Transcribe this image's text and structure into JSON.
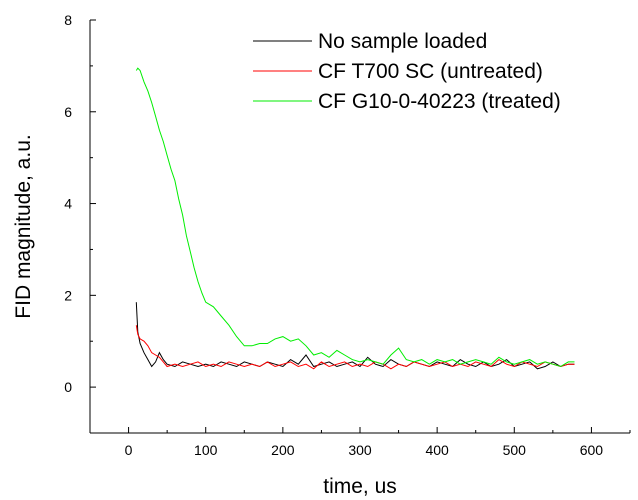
{
  "chart_data": {
    "type": "line",
    "title": "",
    "xlabel": "time, us",
    "ylabel": "FID magnitude, a.u.",
    "xlim": [
      -50,
      650
    ],
    "ylim": [
      -1,
      8
    ],
    "xticks": [
      0,
      100,
      200,
      300,
      400,
      500,
      600
    ],
    "yticks": [
      0,
      2,
      4,
      6,
      8
    ],
    "grid": false,
    "legend_position": "top-right",
    "series": [
      {
        "name": "No sample loaded",
        "color": "#000000",
        "x": [
          10,
          12,
          15,
          20,
          25,
          30,
          35,
          40,
          45,
          50,
          60,
          70,
          80,
          90,
          100,
          110,
          120,
          130,
          140,
          150,
          160,
          170,
          180,
          190,
          200,
          210,
          220,
          230,
          240,
          250,
          260,
          270,
          280,
          290,
          300,
          310,
          320,
          330,
          340,
          350,
          360,
          370,
          380,
          390,
          400,
          410,
          420,
          430,
          440,
          450,
          460,
          470,
          480,
          490,
          500,
          510,
          520,
          530,
          540,
          550,
          560,
          570,
          578
        ],
        "y": [
          1.85,
          1.2,
          0.95,
          0.75,
          0.6,
          0.45,
          0.55,
          0.75,
          0.6,
          0.5,
          0.45,
          0.55,
          0.5,
          0.45,
          0.5,
          0.45,
          0.55,
          0.5,
          0.45,
          0.55,
          0.5,
          0.45,
          0.55,
          0.5,
          0.45,
          0.6,
          0.5,
          0.7,
          0.45,
          0.5,
          0.55,
          0.45,
          0.5,
          0.55,
          0.45,
          0.65,
          0.5,
          0.45,
          0.6,
          0.5,
          0.45,
          0.55,
          0.5,
          0.45,
          0.55,
          0.5,
          0.45,
          0.6,
          0.5,
          0.45,
          0.55,
          0.45,
          0.5,
          0.6,
          0.45,
          0.5,
          0.55,
          0.4,
          0.45,
          0.55,
          0.45,
          0.5,
          0.5
        ]
      },
      {
        "name": "CF T700 SC (untreated)",
        "color": "#ff0000",
        "x": [
          10,
          12,
          15,
          20,
          25,
          30,
          35,
          40,
          45,
          50,
          60,
          70,
          80,
          90,
          100,
          110,
          120,
          130,
          140,
          150,
          160,
          170,
          180,
          190,
          200,
          210,
          220,
          230,
          240,
          250,
          260,
          270,
          280,
          290,
          300,
          310,
          320,
          330,
          340,
          350,
          360,
          370,
          380,
          390,
          400,
          410,
          420,
          430,
          440,
          450,
          460,
          470,
          480,
          490,
          500,
          510,
          520,
          530,
          540,
          550,
          560,
          570,
          578
        ],
        "y": [
          1.35,
          1.15,
          1.05,
          1.0,
          0.9,
          0.75,
          0.7,
          0.65,
          0.55,
          0.45,
          0.5,
          0.45,
          0.5,
          0.55,
          0.45,
          0.5,
          0.45,
          0.55,
          0.5,
          0.45,
          0.5,
          0.45,
          0.55,
          0.45,
          0.5,
          0.55,
          0.45,
          0.5,
          0.4,
          0.55,
          0.45,
          0.5,
          0.55,
          0.45,
          0.5,
          0.45,
          0.55,
          0.5,
          0.4,
          0.5,
          0.45,
          0.55,
          0.5,
          0.45,
          0.5,
          0.55,
          0.45,
          0.5,
          0.45,
          0.55,
          0.5,
          0.45,
          0.6,
          0.5,
          0.45,
          0.55,
          0.5,
          0.45,
          0.55,
          0.5,
          0.45,
          0.5,
          0.5
        ]
      },
      {
        "name": "CF G10-0-40223 (treated)",
        "color": "#00ee00",
        "x": [
          10,
          12,
          15,
          20,
          25,
          30,
          35,
          40,
          45,
          50,
          55,
          60,
          65,
          70,
          75,
          80,
          85,
          90,
          95,
          100,
          110,
          120,
          130,
          140,
          150,
          160,
          170,
          180,
          190,
          200,
          210,
          220,
          230,
          240,
          250,
          260,
          270,
          280,
          290,
          300,
          310,
          320,
          330,
          340,
          350,
          360,
          370,
          380,
          390,
          400,
          410,
          420,
          430,
          440,
          450,
          460,
          470,
          480,
          490,
          500,
          510,
          520,
          530,
          540,
          550,
          560,
          570,
          578
        ],
        "y": [
          6.9,
          6.95,
          6.9,
          6.65,
          6.45,
          6.2,
          5.9,
          5.6,
          5.35,
          5.05,
          4.75,
          4.5,
          4.1,
          3.75,
          3.3,
          2.95,
          2.6,
          2.3,
          2.05,
          1.85,
          1.75,
          1.55,
          1.35,
          1.1,
          0.9,
          0.9,
          0.95,
          0.95,
          1.05,
          1.1,
          1.0,
          1.05,
          0.9,
          0.7,
          0.75,
          0.65,
          0.8,
          0.7,
          0.6,
          0.55,
          0.6,
          0.55,
          0.5,
          0.7,
          0.85,
          0.6,
          0.55,
          0.6,
          0.5,
          0.6,
          0.55,
          0.6,
          0.5,
          0.55,
          0.6,
          0.55,
          0.5,
          0.65,
          0.55,
          0.5,
          0.55,
          0.6,
          0.5,
          0.55,
          0.5,
          0.45,
          0.55,
          0.55
        ]
      }
    ]
  }
}
